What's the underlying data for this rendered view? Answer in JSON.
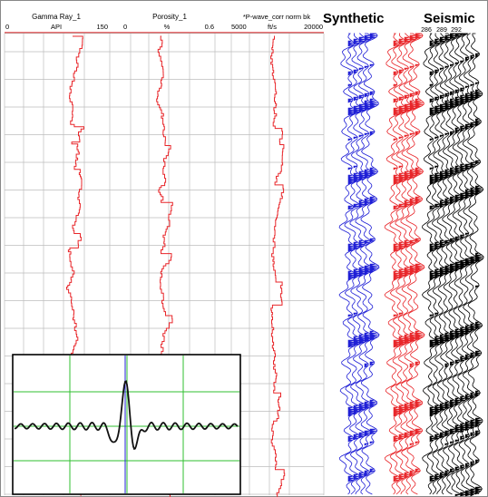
{
  "tracks": [
    {
      "name": "Gamma Ray_1",
      "unit": "API",
      "min": "0",
      "max": "150"
    },
    {
      "name": "Porosity_1",
      "unit": "%",
      "min": "0",
      "max": "0.6"
    },
    {
      "name": "*P-wave_corr norm bk",
      "unit": "ft/s",
      "min": "5000",
      "max": "20000"
    }
  ],
  "panels": {
    "synthetic_title": "Synthetic",
    "seismic_title": "Seismic",
    "seismic_traces": [
      "286",
      "289",
      "292"
    ]
  },
  "colors": {
    "log_curve": "#e8262a",
    "grid": "#bdbdbd",
    "synthetic_blue": "#1f1fd6",
    "synthetic_red": "#e8262a",
    "seismic": "#000000",
    "wavelet_grid": "#2fbf2f",
    "wavelet_axis": "#1f1fd6"
  }
}
